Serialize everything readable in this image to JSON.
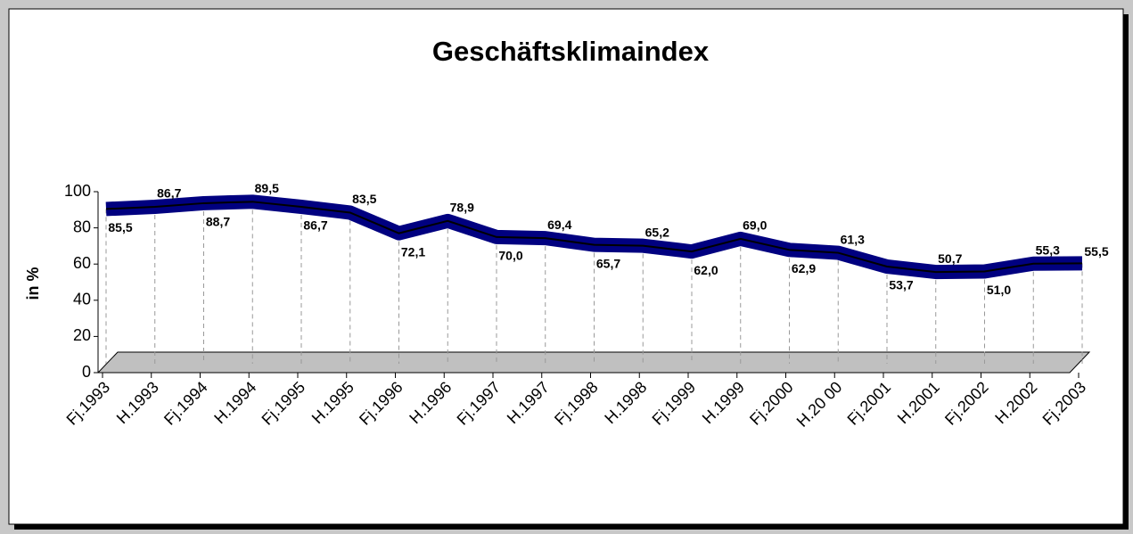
{
  "chart_data": {
    "type": "line",
    "title": "Geschäftsklimaindex",
    "y_label": "in %",
    "categories": [
      "Fj.1993",
      "H.1993",
      "Fj.1994",
      "H.1994",
      "Fj.1995",
      "H.1995",
      "Fj.1996",
      "H.1996",
      "Fj.1997",
      "H.1997",
      "Fj.1998",
      "H.1998",
      "Fj.1999",
      "H.1999",
      "Fj.2000",
      "H.20 00",
      "Fj.2001",
      "H.2001",
      "Fj.2002",
      "H.2002",
      "Fj.2003"
    ],
    "values": [
      85.5,
      86.7,
      88.7,
      89.5,
      86.7,
      83.5,
      72.1,
      78.9,
      70.0,
      69.4,
      65.7,
      65.2,
      62.0,
      69.0,
      62.9,
      61.3,
      53.7,
      50.7,
      51.0,
      55.3,
      55.5
    ],
    "value_labels": [
      "85,5",
      "86,7",
      "88,7",
      "89,5",
      "86,7",
      "83,5",
      "72,1",
      "78,9",
      "70,0",
      "69,4",
      "65,7",
      "65,2",
      "62,0",
      "69,0",
      "62,9",
      "61,3",
      "53,7",
      "50,7",
      "51,0",
      "55,3",
      "55,5"
    ],
    "color": "#000080",
    "ylim": [
      0,
      100
    ],
    "yticks": [
      0,
      20,
      40,
      60,
      80,
      100
    ]
  }
}
